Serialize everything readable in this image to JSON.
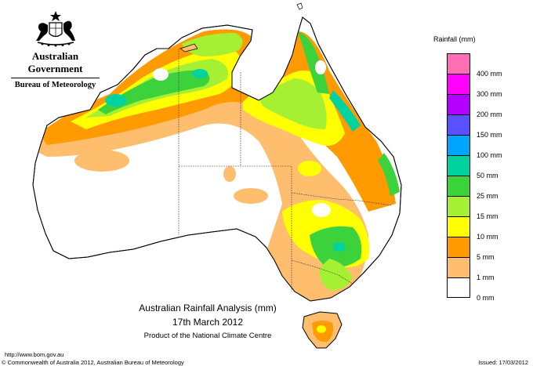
{
  "header": {
    "government": "Australian Government",
    "bureau": "Bureau of Meteorology"
  },
  "title": {
    "main": "Australian Rainfall Analysis (mm)",
    "date": "17th March 2012",
    "producer": "Product of the National Climate Centre"
  },
  "legend": {
    "title": "Rainfall (mm)",
    "items": [
      {
        "label": "",
        "color": "#ff6eb4"
      },
      {
        "label": "400 mm",
        "color": "#ff00ff"
      },
      {
        "label": "300 mm",
        "color": "#b400ff"
      },
      {
        "label": "200 mm",
        "color": "#5a50ff"
      },
      {
        "label": "150 mm",
        "color": "#00a5ff"
      },
      {
        "label": "100 mm",
        "color": "#00d2a0"
      },
      {
        "label": "50 mm",
        "color": "#3cd23c"
      },
      {
        "label": "25 mm",
        "color": "#a5f032"
      },
      {
        "label": "15 mm",
        "color": "#ffff00"
      },
      {
        "label": "10 mm",
        "color": "#ff9b00"
      },
      {
        "label": "5 mm",
        "color": "#ffbe6e"
      },
      {
        "label": "1 mm",
        "color": "#ffffff"
      },
      {
        "label": "0 mm",
        "color": ""
      }
    ]
  },
  "footer": {
    "url": "http://www.bom.gov.au",
    "copyright": "© Commonwealth of Australia 2012, Australian Bureau of Meteorology",
    "issued": "Issued: 17/03/2012"
  }
}
